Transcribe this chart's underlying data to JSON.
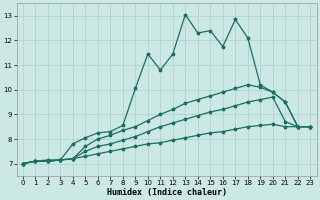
{
  "xlabel": "Humidex (Indice chaleur)",
  "xlim": [
    -0.5,
    23.5
  ],
  "ylim": [
    6.5,
    13.5
  ],
  "xticks": [
    0,
    1,
    2,
    3,
    4,
    5,
    6,
    7,
    8,
    9,
    10,
    11,
    12,
    13,
    14,
    15,
    16,
    17,
    18,
    19,
    20,
    21,
    22,
    23
  ],
  "yticks": [
    7,
    8,
    9,
    10,
    11,
    12,
    13
  ],
  "bg_color": "#cce8e4",
  "grid_color": "#b0d4d0",
  "line_color": "#1a6e62",
  "line1_y": [
    7.0,
    7.1,
    7.1,
    7.15,
    7.2,
    7.3,
    7.4,
    7.5,
    7.6,
    7.7,
    7.8,
    7.85,
    7.95,
    8.05,
    8.15,
    8.25,
    8.3,
    8.4,
    8.5,
    8.55,
    8.6,
    8.5,
    8.5,
    8.5
  ],
  "line2_y": [
    7.0,
    7.1,
    7.1,
    7.15,
    7.2,
    7.5,
    7.7,
    7.8,
    7.95,
    8.1,
    8.3,
    8.5,
    8.65,
    8.8,
    8.95,
    9.1,
    9.2,
    9.35,
    9.5,
    9.6,
    9.7,
    8.7,
    8.5,
    8.5
  ],
  "line3_y": [
    7.0,
    7.1,
    7.1,
    7.15,
    7.2,
    7.7,
    8.0,
    8.15,
    8.35,
    8.5,
    8.75,
    9.0,
    9.2,
    9.45,
    9.6,
    9.75,
    9.9,
    10.05,
    10.2,
    10.1,
    9.9,
    9.5,
    8.5,
    8.5
  ],
  "line4_y": [
    7.0,
    7.1,
    7.15,
    7.15,
    7.8,
    8.05,
    8.25,
    8.3,
    8.55,
    10.05,
    11.45,
    10.8,
    11.45,
    13.05,
    12.3,
    12.4,
    11.75,
    12.85,
    12.1,
    10.2,
    9.9,
    9.5,
    8.5,
    8.5
  ]
}
